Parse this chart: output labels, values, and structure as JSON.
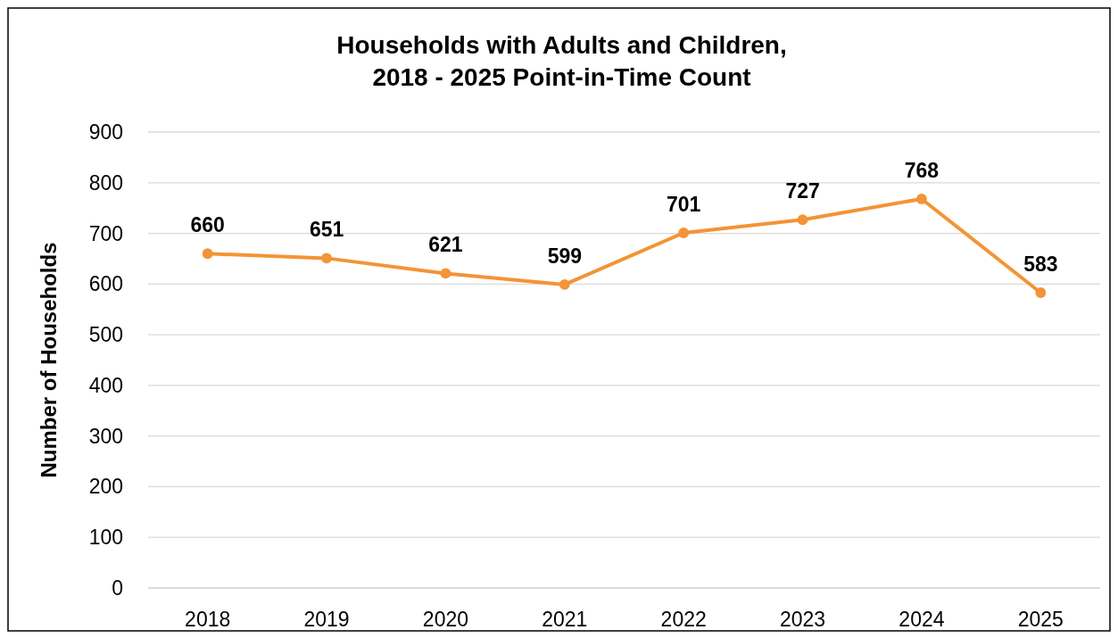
{
  "chart_data": {
    "type": "line",
    "title": "Households with Adults and Children,\n2018 - 2025 Point-in-Time Count",
    "ylabel": "Number of Households",
    "categories": [
      "2018",
      "2019",
      "2020",
      "2021",
      "2022",
      "2023",
      "2024",
      "2025"
    ],
    "series": [
      {
        "color": "#f39436",
        "values": [
          660,
          651,
          621,
          599,
          701,
          727,
          768,
          583
        ]
      }
    ],
    "ylim": [
      0,
      900
    ],
    "yticks": [
      0,
      100,
      200,
      300,
      400,
      500,
      600,
      700,
      800,
      900
    ],
    "grid": "y",
    "marker": "circle",
    "line_style": "solid",
    "data_labels": true
  }
}
